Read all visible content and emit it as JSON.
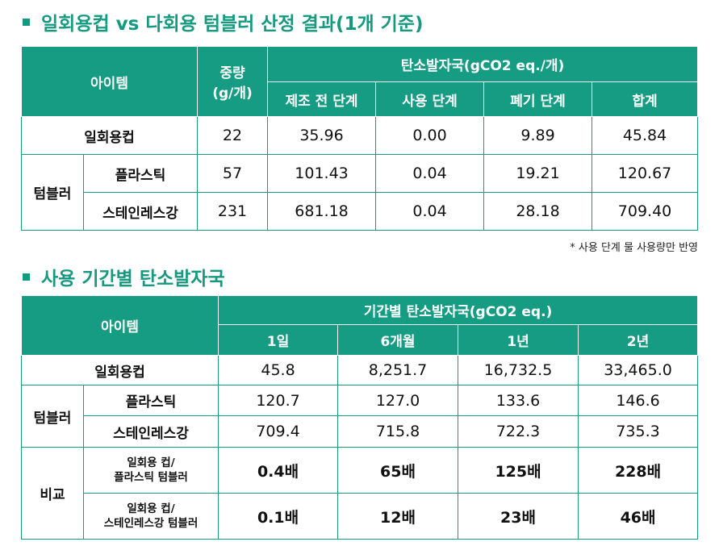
{
  "section1": {
    "title": "일회용컵 vs 다회용 텀블러 산정 결과(1개 기준)",
    "header": {
      "item": "아이템",
      "weight_line1": "중량",
      "weight_line2": "(g/개)",
      "carbon": "탄소발자국(gCO2 eq./개)",
      "stages": [
        "제조 전 단계",
        "사용 단계",
        "폐기 단계",
        "합계"
      ]
    },
    "rows": [
      {
        "group": "",
        "name": "일회용컵",
        "weight": "22",
        "values": [
          "35.96",
          "0.00",
          "9.89",
          "45.84"
        ]
      },
      {
        "group": "텀블러",
        "name": "플라스틱",
        "weight": "57",
        "values": [
          "101.43",
          "0.04",
          "19.21",
          "120.67"
        ]
      },
      {
        "group": "텀블러",
        "name": "스테인레스강",
        "weight": "231",
        "values": [
          "681.18",
          "0.04",
          "28.18",
          "709.40"
        ]
      }
    ],
    "note": "* 사용 단계 물 사용량만 반영"
  },
  "section2": {
    "title": "사용 기간별 탄소발자국",
    "header": {
      "item": "아이템",
      "carbon": "기간별 탄소발자국(gCO2 eq.)",
      "periods": [
        "1일",
        "6개월",
        "1년",
        "2년"
      ]
    },
    "rows": [
      {
        "name": "일회용컵",
        "values": [
          "45.8",
          "8,251.7",
          "16,732.5",
          "33,465.0"
        ]
      },
      {
        "group": "텀블러",
        "name": "플라스틱",
        "values": [
          "120.7",
          "127.0",
          "133.6",
          "146.6"
        ]
      },
      {
        "group": "텀블러",
        "name": "스테인레스강",
        "values": [
          "709.4",
          "715.8",
          "722.3",
          "735.3"
        ]
      },
      {
        "group": "비교",
        "name_line1": "일회용 컵/",
        "name_line2": "플라스틱 텀블러",
        "values": [
          "0.4배",
          "65배",
          "125배",
          "228배"
        ]
      },
      {
        "group": "비교",
        "name_line1": "일회용 컵/",
        "name_line2": "스테인레스강 텀블러",
        "values": [
          "0.1배",
          "12배",
          "23배",
          "46배"
        ]
      }
    ]
  }
}
